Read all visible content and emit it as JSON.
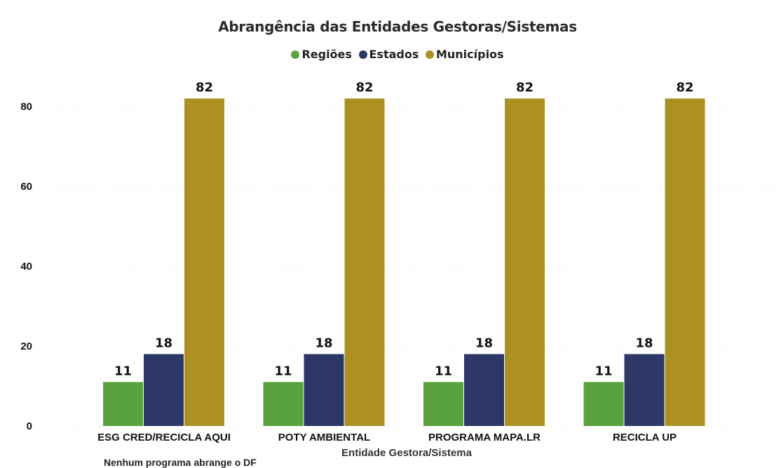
{
  "chart_data": {
    "type": "bar",
    "title": "Abrangência das Entidades Gestoras/Sistemas",
    "xlabel": "Entidade Gestora/Sistema",
    "ylabel": "",
    "ylim": [
      0,
      80
    ],
    "yticks": [
      0,
      20,
      40,
      60,
      80
    ],
    "grid": true,
    "legend_position": "top-center",
    "categories": [
      "ESG CRED/RECICLA AQUI",
      "POTY AMBIENTAL",
      "PROGRAMA MAPA.LR",
      "RECICLA UP"
    ],
    "series": [
      {
        "name": "Regiões",
        "color": "#5aa23d",
        "values": [
          11,
          11,
          11,
          11
        ]
      },
      {
        "name": "Estados",
        "color": "#2d3768",
        "values": [
          18,
          18,
          18,
          18
        ]
      },
      {
        "name": "Municípios",
        "color": "#ad9022",
        "values": [
          82,
          82,
          82,
          82
        ]
      }
    ]
  },
  "footnote": "Nenhum programa abrange o DF"
}
